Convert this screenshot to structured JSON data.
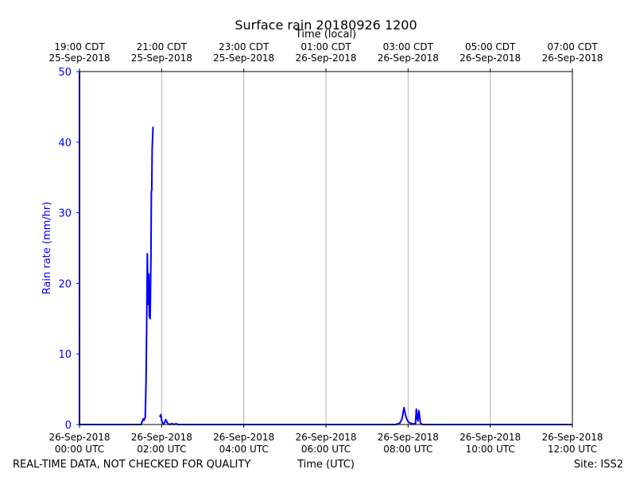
{
  "chart_data": {
    "type": "line",
    "title": "Surface rain 20180926 1200",
    "ylabel": "Rain rate (mm/hr)",
    "xlabel_bottom": "Time (UTC)",
    "xlabel_top": "Time (local)",
    "footer_left": "REAL-TIME DATA, NOT CHECKED FOR QUALITY",
    "footer_right": "Site: ISS2",
    "xlim_hours_utc": [
      0,
      12
    ],
    "ylim": [
      0,
      50
    ],
    "y_ticks": [
      0,
      10,
      20,
      30,
      40,
      50
    ],
    "grid": "vertical",
    "colors": {
      "series": "#0000ff",
      "axis_text": "#0000ff",
      "grid": "#b0b0b0",
      "frame": "#000000"
    },
    "bottom_ticks": [
      {
        "hour": 0,
        "line1": "26-Sep-2018",
        "line2": "00:00 UTC"
      },
      {
        "hour": 2,
        "line1": "26-Sep-2018",
        "line2": "02:00 UTC"
      },
      {
        "hour": 4,
        "line1": "26-Sep-2018",
        "line2": "04:00 UTC"
      },
      {
        "hour": 6,
        "line1": "26-Sep-2018",
        "line2": "06:00 UTC"
      },
      {
        "hour": 8,
        "line1": "26-Sep-2018",
        "line2": "08:00 UTC"
      },
      {
        "hour": 10,
        "line1": "26-Sep-2018",
        "line2": "10:00 UTC"
      },
      {
        "hour": 12,
        "line1": "26-Sep-2018",
        "line2": "12:00 UTC"
      }
    ],
    "top_ticks": [
      {
        "hour": 0,
        "line1": "19:00 CDT",
        "line2": "25-Sep-2018"
      },
      {
        "hour": 2,
        "line1": "21:00 CDT",
        "line2": "25-Sep-2018"
      },
      {
        "hour": 4,
        "line1": "23:00 CDT",
        "line2": "25-Sep-2018"
      },
      {
        "hour": 6,
        "line1": "01:00 CDT",
        "line2": "26-Sep-2018"
      },
      {
        "hour": 8,
        "line1": "03:00 CDT",
        "line2": "26-Sep-2018"
      },
      {
        "hour": 10,
        "line1": "05:00 CDT",
        "line2": "26-Sep-2018"
      },
      {
        "hour": 12,
        "line1": "07:00 CDT",
        "line2": "26-Sep-2018"
      }
    ],
    "series": [
      {
        "points": [
          [
            0.0,
            50
          ],
          [
            0.0,
            0
          ],
          [
            0.02,
            0
          ],
          [
            1.5,
            0
          ],
          [
            1.53,
            0.5
          ],
          [
            1.55,
            0.8
          ],
          [
            1.57,
            0.6
          ],
          [
            1.6,
            1.0
          ],
          [
            1.62,
            6
          ],
          [
            1.64,
            16
          ],
          [
            1.65,
            24.2
          ],
          [
            1.67,
            17
          ],
          [
            1.69,
            21.3
          ],
          [
            1.7,
            15.3
          ],
          [
            1.72,
            15.0
          ],
          [
            1.74,
            24
          ],
          [
            1.75,
            33
          ],
          [
            1.76,
            33.2
          ],
          [
            1.77,
            39
          ],
          [
            1.79,
            42.2
          ]
        ]
      },
      {
        "points": [
          [
            1.95,
            1.3
          ],
          [
            1.97,
            1.1
          ],
          [
            1.98,
            1.4
          ],
          [
            2.0,
            0.6
          ],
          [
            2.02,
            0.2
          ],
          [
            2.05,
            0.1
          ],
          [
            2.08,
            0.4
          ],
          [
            2.1,
            0.7
          ],
          [
            2.13,
            0.3
          ],
          [
            2.16,
            0.1
          ],
          [
            2.2,
            0.0
          ],
          [
            2.25,
            0.15
          ],
          [
            2.3,
            0.0
          ],
          [
            2.35,
            0.1
          ],
          [
            2.4,
            0.0
          ],
          [
            7.7,
            0.0
          ],
          [
            7.8,
            0.2
          ],
          [
            7.85,
            0.8
          ],
          [
            7.9,
            2.4
          ],
          [
            7.92,
            1.8
          ],
          [
            7.95,
            1.0
          ],
          [
            8.0,
            0.4
          ],
          [
            8.05,
            0.2
          ],
          [
            8.1,
            0.1
          ],
          [
            8.18,
            0.1
          ],
          [
            8.2,
            2.2
          ],
          [
            8.22,
            1.0
          ],
          [
            8.24,
            0.5
          ],
          [
            8.26,
            2.0
          ],
          [
            8.28,
            1.2
          ],
          [
            8.3,
            0.2
          ],
          [
            8.35,
            0.0
          ],
          [
            12.0,
            0.0
          ]
        ]
      }
    ]
  }
}
